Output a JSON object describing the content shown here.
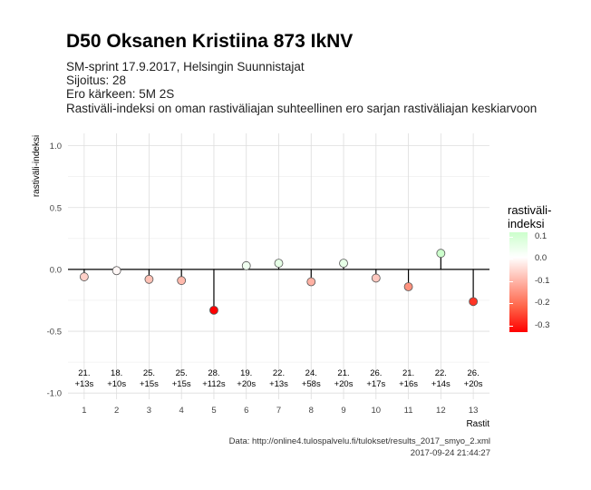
{
  "header": {
    "title": "D50 Oksanen Kristiina 873 IkNV",
    "subtitle_lines": [
      "SM-sprint 17.9.2017, Helsingin Suunnistajat",
      "Sijoitus: 28",
      "Ero kärkeen: 5M 2S",
      "Rastiväli-indeksi on oman rastiväliajan suhteellinen ero sarjan rastiväliajan keskiarvoon"
    ]
  },
  "chart_data": {
    "type": "scatter",
    "style": "lollipop",
    "xlabel": "Rastit",
    "ylabel": "rastiväli-indeksi",
    "x": [
      1,
      2,
      3,
      4,
      5,
      6,
      7,
      8,
      9,
      10,
      11,
      12,
      13
    ],
    "values": [
      -0.06,
      -0.01,
      -0.08,
      -0.09,
      -0.33,
      0.03,
      0.05,
      -0.1,
      0.05,
      -0.07,
      -0.14,
      0.13,
      -0.26
    ],
    "annotations_rank": [
      "21.",
      "18.",
      "25.",
      "25.",
      "28.",
      "19.",
      "22.",
      "24.",
      "21.",
      "26.",
      "21.",
      "22.",
      "26."
    ],
    "annotations_diff": [
      "+13s",
      "+10s",
      "+15s",
      "+15s",
      "+112s",
      "+20s",
      "+13s",
      "+58s",
      "+20s",
      "+17s",
      "+16s",
      "+14s",
      "+20s"
    ],
    "ylim": [
      -1.05,
      1.1
    ],
    "yticks": [
      1.0,
      0.5,
      0.0,
      -0.5,
      -1.0
    ],
    "ytick_labels": [
      "1.0",
      "0.5",
      "0.0",
      "-0.5",
      "-1.0"
    ],
    "xticks": [
      1,
      2,
      3,
      4,
      5,
      6,
      7,
      8,
      9,
      10,
      11,
      12,
      13
    ],
    "grid": true,
    "legend": {
      "title_lines": [
        "rastiväli-",
        "indeksi"
      ],
      "labels": [
        "0.1",
        "0.0",
        "-0.1",
        "-0.2",
        "-0.3"
      ],
      "position": "right"
    },
    "colors": {
      "positive": "#ccffcc",
      "neutral": "#ffffff",
      "negative": "#ff0000",
      "zero_line": "#000000",
      "grid": "#dddddd"
    }
  },
  "caption": {
    "source": "Data: http://online4.tulospalvelu.fi/tulokset/results_2017_smyo_2.xml",
    "timestamp": "2017-09-24 21:44:27"
  }
}
